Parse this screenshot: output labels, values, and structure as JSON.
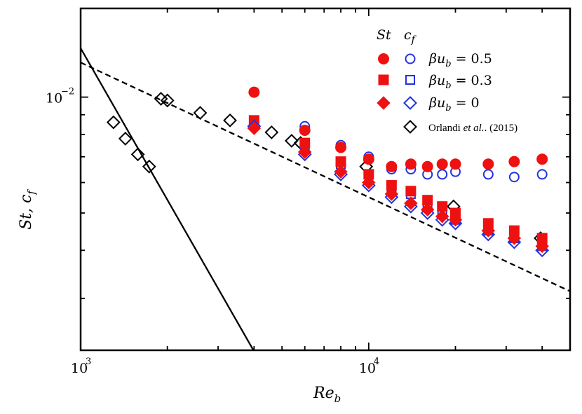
{
  "chart_data": {
    "type": "scatter",
    "title": "",
    "xlabel": "Re_b",
    "ylabel": "St, c_f",
    "xscale": "log",
    "yscale": "log",
    "xlim": [
      1000,
      50000
    ],
    "ylim": [
      0.0022,
      0.017
    ],
    "x_tick_labels": [
      {
        "base": "10",
        "exp": "3",
        "value": 1000
      },
      {
        "base": "10",
        "exp": "4",
        "value": 10000
      }
    ],
    "y_tick_labels": [
      {
        "base": "10",
        "exp": "−2",
        "value": 0.01
      }
    ],
    "legend": {
      "position": "top-right",
      "header_st": "St",
      "header_cf": "c_f",
      "entries": [
        "βu_b = 0.5",
        "βu_b = 0.3",
        "βu_b = 0",
        "Orlandi et al. (2015)"
      ],
      "orlandi_prefix": "Orlandi ",
      "orlandi_etal": "et al.",
      "orlandi_suffix": ". (2015)"
    },
    "colors": {
      "st": "#ee1111",
      "cf": "#2233dd",
      "ref": "#000000"
    },
    "lines": [
      {
        "style": "solid",
        "x": [
          1000,
          4050
        ],
        "y": [
          0.0134,
          0.00215
        ]
      },
      {
        "style": "dashed",
        "x": [
          1000,
          50000
        ],
        "y": [
          0.0123,
          0.00313
        ]
      }
    ],
    "series": [
      {
        "name": "St βu_b = 0.5",
        "marker": "circle",
        "fill": "filled",
        "color": "#ee1111",
        "x": [
          4000,
          6000,
          8000,
          10000,
          12000,
          14000,
          16000,
          18000,
          20000,
          26000,
          32000,
          40000
        ],
        "y": [
          0.0103,
          0.0082,
          0.0074,
          0.0069,
          0.0066,
          0.0067,
          0.0066,
          0.0067,
          0.0067,
          0.0067,
          0.0068,
          0.0069
        ]
      },
      {
        "name": "c_f βu_b = 0.5",
        "marker": "circle",
        "fill": "open",
        "color": "#2233dd",
        "x": [
          4000,
          6000,
          8000,
          10000,
          12000,
          14000,
          16000,
          18000,
          20000,
          26000,
          32000,
          40000
        ],
        "y": [
          0.0103,
          0.0084,
          0.0075,
          0.007,
          0.0065,
          0.0065,
          0.0063,
          0.0063,
          0.0064,
          0.0063,
          0.0062,
          0.0063
        ]
      },
      {
        "name": "St βu_b = 0.3",
        "marker": "square",
        "fill": "filled",
        "color": "#ee1111",
        "x": [
          4000,
          6000,
          8000,
          10000,
          12000,
          14000,
          16000,
          18000,
          20000,
          26000,
          32000,
          40000
        ],
        "y": [
          0.0087,
          0.0076,
          0.0068,
          0.0063,
          0.0059,
          0.0057,
          0.0054,
          0.0052,
          0.005,
          0.0047,
          0.0045,
          0.0043
        ]
      },
      {
        "name": "c_f βu_b = 0.3",
        "marker": "square",
        "fill": "open",
        "color": "#2233dd",
        "x": [
          4000,
          6000,
          8000,
          10000,
          12000,
          14000,
          16000,
          18000,
          20000,
          26000,
          32000,
          40000
        ],
        "y": [
          0.0087,
          0.0075,
          0.0067,
          0.0063,
          0.0058,
          0.0056,
          0.0052,
          0.005,
          0.0048,
          0.0045,
          0.0043,
          0.0041
        ]
      },
      {
        "name": "St βu_b = 0",
        "marker": "diamond",
        "fill": "filled",
        "color": "#ee1111",
        "x": [
          4000,
          6000,
          8000,
          10000,
          12000,
          14000,
          16000,
          18000,
          20000,
          26000,
          32000,
          40000
        ],
        "y": [
          0.0083,
          0.0072,
          0.0064,
          0.006,
          0.0056,
          0.0053,
          0.0051,
          0.0049,
          0.0048,
          0.0045,
          0.0043,
          0.0041
        ]
      },
      {
        "name": "c_f βu_b = 0",
        "marker": "diamond",
        "fill": "open",
        "color": "#2233dd",
        "x": [
          4000,
          6000,
          8000,
          10000,
          12000,
          14000,
          16000,
          18000,
          20000,
          26000,
          32000,
          40000
        ],
        "y": [
          0.0084,
          0.0071,
          0.0063,
          0.0059,
          0.0055,
          0.0052,
          0.005,
          0.0048,
          0.0047,
          0.0044,
          0.0042,
          0.004
        ]
      },
      {
        "name": "Orlandi et al. (2015)",
        "marker": "diamond",
        "fill": "open",
        "color": "#000000",
        "x": [
          1300,
          1430,
          1580,
          1730,
          1900,
          2000,
          2600,
          3300,
          4600,
          5400,
          5800,
          9800,
          19700,
          39500
        ],
        "y": [
          0.0086,
          0.0078,
          0.0071,
          0.0066,
          0.0099,
          0.0098,
          0.0091,
          0.0087,
          0.0081,
          0.0077,
          0.0076,
          0.0066,
          0.0052,
          0.0043
        ]
      }
    ]
  }
}
